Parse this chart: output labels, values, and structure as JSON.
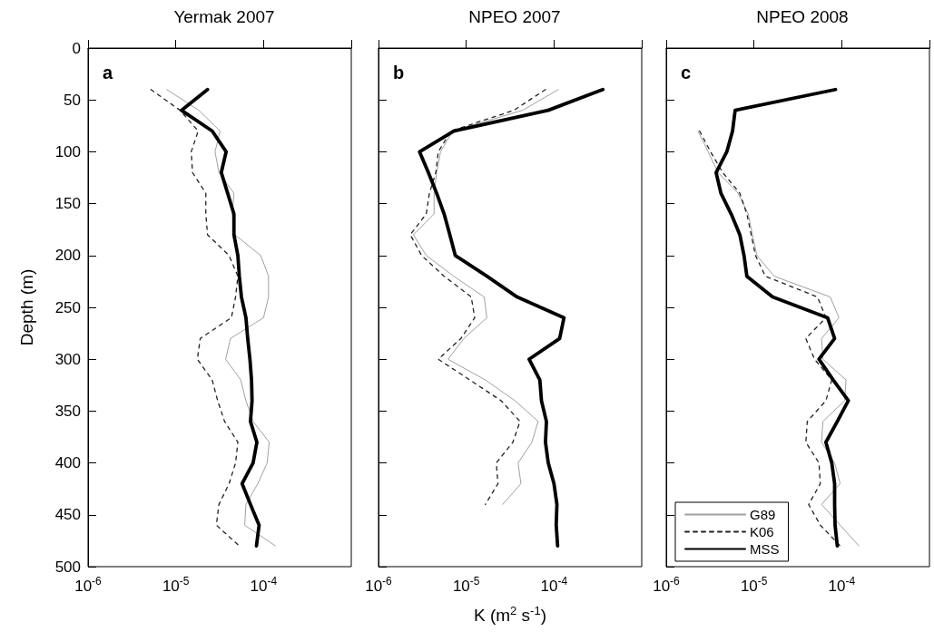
{
  "chart_data": [
    {
      "type": "line",
      "title": "Yermak 2007",
      "ylabel": "Depth (m)",
      "annotations": [
        "a"
      ],
      "log": "x",
      "xlim": [
        1e-06,
        0.001
      ],
      "xticks": [
        {
          "value": 1e-06,
          "label": "10$^{-6}$"
        },
        {
          "value": 1e-05,
          "label": "10$^{-5}$"
        },
        {
          "value": 0.0001,
          "label": "10$^{-4}$"
        },
        {
          "value": 0.001,
          "label": null
        }
      ],
      "ylim": [
        500,
        0
      ],
      "yticks": [
        0,
        50,
        100,
        150,
        200,
        250,
        300,
        350,
        400,
        450,
        500
      ],
      "grid": false,
      "legend": false,
      "series": [
        {
          "color": "#a0a0a0",
          "line_style": "solid",
          "x": [
            7.9e-06,
            1.83e-05,
            3.2e-05,
            2.8e-05,
            3.1e-05,
            4.6e-05,
            4.4e-05,
            4.7e-05,
            9.3e-05,
            0.000114,
            0.000114,
            0.0001,
            4.2e-05,
            3.7e-05,
            5.5e-05,
            6.3e-05,
            7.6e-05,
            0.000116,
            0.00011,
            8.6e-05,
            6.3e-05,
            6.1e-05,
            0.000137
          ],
          "values": [
            40,
            60,
            80,
            100,
            120,
            140,
            160,
            180,
            200,
            220,
            240,
            260,
            280,
            300,
            320,
            340,
            360,
            380,
            400,
            420,
            440,
            460,
            480
          ]
        },
        {
          "color": "#222222",
          "line_style": "dashed",
          "x": [
            5.2e-06,
            1.12e-05,
            1.8e-05,
            1.5e-05,
            1.55e-05,
            2.2e-05,
            2.2e-05,
            2.3e-05,
            4.05e-05,
            5.1e-05,
            4.8e-05,
            4.3e-05,
            1.9e-05,
            1.76e-05,
            2.6e-05,
            3e-05,
            3.6e-05,
            5.1e-05,
            4.8e-05,
            4.05e-05,
            3.1e-05,
            2.9e-05,
            5.3e-05
          ],
          "values": [
            40,
            60,
            80,
            100,
            120,
            140,
            160,
            180,
            200,
            220,
            240,
            260,
            280,
            300,
            320,
            340,
            360,
            380,
            400,
            420,
            440,
            460,
            480
          ]
        },
        {
          "color": "#000000",
          "line_style": "solid",
          "x": [
            2.3e-05,
            1.16e-05,
            2.6e-05,
            3.75e-05,
            3.3e-05,
            3.9e-05,
            4.6e-05,
            4.6e-05,
            5.1e-05,
            5.3e-05,
            5.6e-05,
            6.3e-05,
            6.6e-05,
            7e-05,
            7.3e-05,
            7.4e-05,
            7.1e-05,
            8.4e-05,
            7.6e-05,
            5.7e-05,
            7.1e-05,
            8.9e-05,
            8.3e-05
          ],
          "values": [
            40,
            60,
            80,
            100,
            120,
            140,
            160,
            180,
            200,
            220,
            240,
            260,
            280,
            300,
            320,
            340,
            360,
            380,
            400,
            420,
            440,
            460,
            480
          ]
        }
      ]
    },
    {
      "type": "line",
      "title": "NPEO 2007",
      "xlabel": "K (m$^{2}$ s$^{-1}$)",
      "annotations": [
        "b"
      ],
      "log": "x",
      "tick_labels": "x",
      "xlim": [
        1e-06,
        0.001
      ],
      "xticks": [
        {
          "value": 1e-06,
          "label": "10$^{-6}$"
        },
        {
          "value": 1e-05,
          "label": "10$^{-5}$"
        },
        {
          "value": 0.0001,
          "label": "10$^{-4}$"
        },
        {
          "value": 0.001,
          "label": null
        }
      ],
      "ylim": [
        500,
        0
      ],
      "yticks": [
        0,
        50,
        100,
        150,
        200,
        250,
        300,
        350,
        400,
        450,
        500
      ],
      "grid": false,
      "legend": false,
      "series": [
        {
          "color": "#a0a0a0",
          "line_style": "solid",
          "x": [
            0.000112,
            4.4e-05,
            7e-06,
            5.1e-06,
            4.6e-06,
            4.3e-06,
            4.3e-06,
            2.5e-06,
            3.5e-06,
            7.2e-06,
            1.6e-05,
            1.72e-05,
            9.4e-06,
            6.2e-06,
            1.65e-05,
            3.6e-05,
            6.6e-05,
            5.6e-05,
            3.9e-05,
            4.2e-05,
            2.6e-05
          ],
          "values": [
            40,
            60,
            80,
            100,
            120,
            140,
            160,
            180,
            200,
            220,
            240,
            260,
            280,
            300,
            320,
            340,
            360,
            380,
            400,
            420,
            440
          ]
        },
        {
          "color": "#222222",
          "line_style": "dashed",
          "x": [
            8e-05,
            3.5e-05,
            6.7e-06,
            4.8e-06,
            4.5e-06,
            3.8e-06,
            3.5e-06,
            2.3e-06,
            3.1e-06,
            5.6e-06,
            1.14e-05,
            1.25e-05,
            8.7e-06,
            4.8e-06,
            1.1e-05,
            2.5e-05,
            4.1e-05,
            3.4e-05,
            2.2e-05,
            2.3e-05,
            1.65e-05
          ],
          "values": [
            40,
            60,
            80,
            100,
            120,
            140,
            160,
            180,
            200,
            220,
            240,
            260,
            280,
            300,
            320,
            340,
            360,
            380,
            400,
            420,
            440
          ]
        },
        {
          "color": "#000000",
          "line_style": "solid",
          "x": [
            0.00036,
            8.6e-05,
            7.2e-06,
            2.94e-06,
            3.7e-06,
            4.6e-06,
            5.6e-06,
            6.5e-06,
            7.5e-06,
            1.72e-05,
            3.8e-05,
            0.00013,
            0.000116,
            5.2e-05,
            6.9e-05,
            7.2e-05,
            8.2e-05,
            8e-05,
            8.6e-05,
            0.0001,
            0.000108,
            0.000106,
            0.00011
          ],
          "values": [
            40,
            60,
            80,
            100,
            120,
            140,
            160,
            180,
            200,
            220,
            240,
            260,
            280,
            300,
            320,
            340,
            360,
            380,
            400,
            420,
            440,
            460,
            480
          ]
        }
      ]
    },
    {
      "type": "line",
      "title": "NPEO 2008",
      "annotations": [
        "c"
      ],
      "log": "x",
      "tick_labels": "x",
      "xlim": [
        1e-06,
        0.001
      ],
      "xticks": [
        {
          "value": 1e-06,
          "label": "10$^{-6}$"
        },
        {
          "value": 1e-05,
          "label": "10$^{-5}$"
        },
        {
          "value": 0.0001,
          "label": "10$^{-4}$"
        },
        {
          "value": 0.001,
          "label": null
        }
      ],
      "ylim": [
        500,
        0
      ],
      "yticks": [
        0,
        50,
        100,
        150,
        200,
        250,
        300,
        350,
        400,
        450,
        500
      ],
      "grid": false,
      "legend": "bottom left",
      "series": [
        {
          "name": "G89",
          "color": "#a0a0a0",
          "line_style": "solid",
          "x": [
            2.3e-06,
            3e-06,
            3.9e-06,
            6.6e-06,
            8.6e-06,
            9.6e-06,
            1.08e-05,
            1.7e-05,
            7.4e-05,
            9.3e-05,
            5.9e-05,
            6.1e-05,
            0.000112,
            0.000108,
            6.1e-05,
            5.9e-05,
            8.3e-05,
            9.6e-05,
            5.9e-05,
            9.6e-05,
            0.000157
          ],
          "values": [
            80,
            100,
            120,
            140,
            160,
            180,
            200,
            220,
            240,
            260,
            280,
            300,
            320,
            340,
            360,
            380,
            400,
            420,
            440,
            460,
            480
          ]
        },
        {
          "name": "K06",
          "color": "#222222",
          "line_style": "dashed",
          "x": [
            2.4e-06,
            3.2e-06,
            4.4e-06,
            6.9e-06,
            8.3e-06,
            9.3e-06,
            1.04e-05,
            1.35e-05,
            5.3e-05,
            6.6e-05,
            3.9e-05,
            4.9e-05,
            7.7e-05,
            6.6e-05,
            4.05e-05,
            3.9e-05,
            5.5e-05,
            5.7e-05,
            4.2e-05,
            5.7e-05,
            9.6e-05
          ],
          "values": [
            80,
            100,
            120,
            140,
            160,
            180,
            200,
            220,
            240,
            260,
            280,
            300,
            320,
            340,
            360,
            380,
            400,
            420,
            440,
            460,
            480
          ]
        },
        {
          "name": "MSS",
          "color": "#000000",
          "line_style": "solid",
          "x": [
            8.5e-05,
            6.1e-06,
            5.7e-06,
            4.9e-06,
            3.7e-06,
            4.2e-06,
            5.5e-06,
            6.9e-06,
            7.7e-06,
            8.3e-06,
            1.63e-05,
            6.9e-05,
            8.3e-05,
            5.5e-05,
            8e-05,
            0.000119,
            8.9e-05,
            6.6e-05,
            7.7e-05,
            8.3e-05,
            8.3e-05,
            8.4e-05,
            8.9e-05
          ],
          "values": [
            40,
            60,
            80,
            100,
            120,
            140,
            160,
            180,
            200,
            220,
            240,
            260,
            280,
            300,
            320,
            340,
            360,
            380,
            400,
            420,
            440,
            460,
            480
          ]
        }
      ]
    }
  ]
}
